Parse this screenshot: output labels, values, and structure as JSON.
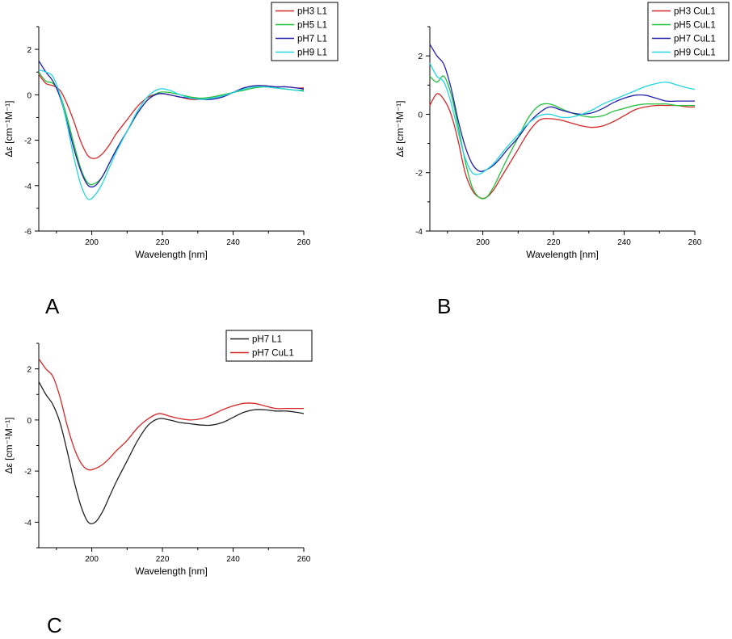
{
  "chart_data": [
    {
      "panel": "A",
      "type": "line",
      "xlabel": "Wavelength [nm]",
      "ylabel": "Δε [cm⁻¹M⁻¹]",
      "xlim": [
        185,
        260
      ],
      "ylim": [
        -6,
        3
      ],
      "xticks": [
        200,
        220,
        240,
        260
      ],
      "yticks": [
        -6,
        -4,
        -2,
        0,
        2
      ],
      "legend_position": "top-right",
      "series": [
        {
          "name": "pH3 L1",
          "color": "#d62728",
          "x": [
            185,
            187,
            189,
            191,
            193,
            195,
            197,
            199,
            201,
            203,
            205,
            207,
            210,
            213,
            216,
            219,
            222,
            225,
            228,
            231,
            234,
            237,
            240,
            243,
            246,
            249,
            252,
            255,
            258,
            260
          ],
          "y": [
            0.9,
            0.5,
            0.4,
            0.2,
            -0.4,
            -1.2,
            -2.1,
            -2.7,
            -2.8,
            -2.6,
            -2.2,
            -1.7,
            -1.1,
            -0.5,
            -0.1,
            0.05,
            0.0,
            -0.1,
            -0.2,
            -0.2,
            -0.15,
            -0.05,
            0.1,
            0.3,
            0.4,
            0.4,
            0.35,
            0.35,
            0.3,
            0.3
          ]
        },
        {
          "name": "pH5 L1",
          "color": "#1fbf3a",
          "x": [
            185,
            187,
            189,
            191,
            193,
            195,
            197,
            199,
            201,
            203,
            205,
            207,
            210,
            213,
            216,
            219,
            222,
            225,
            228,
            231,
            234,
            237,
            240,
            243,
            246,
            249,
            252,
            255,
            258,
            260
          ],
          "y": [
            1.0,
            0.6,
            0.5,
            0.0,
            -1.0,
            -2.2,
            -3.3,
            -3.9,
            -3.9,
            -3.6,
            -3.0,
            -2.4,
            -1.6,
            -0.8,
            -0.2,
            0.1,
            0.1,
            0.0,
            -0.1,
            -0.15,
            -0.1,
            0.0,
            0.1,
            0.2,
            0.3,
            0.35,
            0.3,
            0.25,
            0.2,
            0.2
          ]
        },
        {
          "name": "pH7 L1",
          "color": "#2222aa",
          "x": [
            185,
            187,
            189,
            191,
            193,
            195,
            197,
            199,
            201,
            203,
            205,
            207,
            210,
            213,
            216,
            219,
            222,
            225,
            228,
            231,
            234,
            237,
            240,
            243,
            246,
            249,
            252,
            255,
            258,
            260
          ],
          "y": [
            1.5,
            1.0,
            0.6,
            -0.1,
            -1.2,
            -2.4,
            -3.4,
            -4.0,
            -4.0,
            -3.6,
            -3.0,
            -2.4,
            -1.6,
            -0.8,
            -0.2,
            0.05,
            0.0,
            -0.1,
            -0.15,
            -0.2,
            -0.2,
            -0.1,
            0.1,
            0.3,
            0.4,
            0.4,
            0.35,
            0.35,
            0.3,
            0.25
          ]
        },
        {
          "name": "pH9 L1",
          "color": "#22d6e0",
          "x": [
            185,
            187,
            189,
            191,
            193,
            195,
            197,
            199,
            201,
            203,
            205,
            207,
            210,
            213,
            216,
            219,
            222,
            225,
            228,
            231,
            234,
            237,
            240,
            243,
            246,
            249,
            252,
            255,
            258,
            260
          ],
          "y": [
            1.1,
            1.0,
            0.8,
            0.0,
            -1.3,
            -2.8,
            -4.0,
            -4.6,
            -4.4,
            -3.9,
            -3.2,
            -2.5,
            -1.6,
            -0.7,
            -0.05,
            0.25,
            0.2,
            0.0,
            -0.15,
            -0.2,
            -0.15,
            -0.05,
            0.1,
            0.25,
            0.35,
            0.35,
            0.3,
            0.25,
            0.2,
            0.15
          ]
        }
      ]
    },
    {
      "panel": "B",
      "type": "line",
      "xlabel": "Wavelength [nm]",
      "ylabel": "Δε [cm⁻¹M⁻¹]",
      "xlim": [
        185,
        260
      ],
      "ylim": [
        -4,
        3
      ],
      "xticks": [
        200,
        220,
        240,
        260
      ],
      "yticks": [
        -4,
        -2,
        0,
        2
      ],
      "legend_position": "top-right",
      "series": [
        {
          "name": "pH3 CuL1",
          "color": "#d62728",
          "x": [
            185,
            187,
            189,
            191,
            193,
            195,
            197,
            199,
            201,
            203,
            205,
            207,
            210,
            213,
            216,
            219,
            222,
            225,
            228,
            231,
            234,
            237,
            240,
            243,
            246,
            249,
            252,
            255,
            258,
            260
          ],
          "y": [
            0.3,
            0.7,
            0.5,
            0.0,
            -0.9,
            -2.0,
            -2.6,
            -2.85,
            -2.85,
            -2.6,
            -2.2,
            -1.8,
            -1.2,
            -0.6,
            -0.2,
            -0.15,
            -0.2,
            -0.3,
            -0.4,
            -0.45,
            -0.4,
            -0.25,
            -0.05,
            0.15,
            0.25,
            0.3,
            0.3,
            0.3,
            0.25,
            0.25
          ]
        },
        {
          "name": "pH5 CuL1",
          "color": "#1fbf3a",
          "x": [
            185,
            187,
            189,
            191,
            193,
            195,
            197,
            199,
            201,
            203,
            205,
            207,
            210,
            213,
            216,
            219,
            222,
            225,
            228,
            231,
            234,
            237,
            240,
            243,
            246,
            249,
            252,
            255,
            258,
            260
          ],
          "y": [
            1.3,
            1.1,
            1.3,
            0.7,
            -0.4,
            -1.6,
            -2.5,
            -2.85,
            -2.85,
            -2.5,
            -2.0,
            -1.5,
            -0.8,
            -0.1,
            0.3,
            0.35,
            0.2,
            0.05,
            -0.05,
            -0.1,
            -0.05,
            0.1,
            0.2,
            0.3,
            0.35,
            0.35,
            0.35,
            0.3,
            0.3,
            0.3
          ]
        },
        {
          "name": "pH7 CuL1",
          "color": "#2222aa",
          "x": [
            185,
            187,
            189,
            191,
            193,
            195,
            197,
            199,
            201,
            203,
            205,
            207,
            210,
            213,
            216,
            219,
            222,
            225,
            228,
            231,
            234,
            237,
            240,
            243,
            246,
            249,
            252,
            255,
            258,
            260
          ],
          "y": [
            2.4,
            2.0,
            1.7,
            0.9,
            -0.2,
            -1.1,
            -1.7,
            -1.95,
            -1.9,
            -1.75,
            -1.5,
            -1.2,
            -0.8,
            -0.3,
            0.05,
            0.25,
            0.15,
            0.05,
            0.0,
            0.05,
            0.2,
            0.4,
            0.55,
            0.65,
            0.65,
            0.55,
            0.45,
            0.45,
            0.45,
            0.45
          ]
        },
        {
          "name": "pH9 CuL1",
          "color": "#22d6e0",
          "x": [
            185,
            187,
            189,
            191,
            193,
            195,
            197,
            199,
            201,
            203,
            205,
            207,
            210,
            213,
            216,
            219,
            222,
            225,
            228,
            231,
            234,
            237,
            240,
            243,
            246,
            249,
            252,
            255,
            258,
            260
          ],
          "y": [
            1.75,
            1.3,
            1.1,
            0.4,
            -0.6,
            -1.5,
            -2.0,
            -2.05,
            -1.9,
            -1.7,
            -1.4,
            -1.1,
            -0.7,
            -0.3,
            -0.05,
            0.0,
            -0.1,
            -0.1,
            0.0,
            0.15,
            0.35,
            0.5,
            0.65,
            0.8,
            0.95,
            1.05,
            1.1,
            1.0,
            0.9,
            0.85
          ]
        }
      ]
    },
    {
      "panel": "C",
      "type": "line",
      "xlabel": "Wavelength [nm]",
      "ylabel": "Δε [cm⁻¹M⁻¹]",
      "xlim": [
        185,
        260
      ],
      "ylim": [
        -5,
        3
      ],
      "xticks": [
        200,
        220,
        240,
        260
      ],
      "yticks": [
        -4,
        -2,
        0,
        2
      ],
      "legend_position": "top-right",
      "series": [
        {
          "name": "pH7 L1",
          "color": "#222222",
          "x": [
            185,
            187,
            189,
            191,
            193,
            195,
            197,
            199,
            201,
            203,
            205,
            207,
            210,
            213,
            216,
            219,
            222,
            225,
            228,
            231,
            234,
            237,
            240,
            243,
            246,
            249,
            252,
            255,
            258,
            260
          ],
          "y": [
            1.5,
            1.0,
            0.6,
            -0.1,
            -1.2,
            -2.4,
            -3.4,
            -4.0,
            -4.0,
            -3.6,
            -3.0,
            -2.4,
            -1.6,
            -0.8,
            -0.2,
            0.05,
            0.0,
            -0.1,
            -0.15,
            -0.2,
            -0.2,
            -0.1,
            0.1,
            0.3,
            0.4,
            0.4,
            0.35,
            0.35,
            0.3,
            0.25
          ]
        },
        {
          "name": "pH7 CuL1",
          "color": "#d62728",
          "x": [
            185,
            187,
            189,
            191,
            193,
            195,
            197,
            199,
            201,
            203,
            205,
            207,
            210,
            213,
            216,
            219,
            222,
            225,
            228,
            231,
            234,
            237,
            240,
            243,
            246,
            249,
            252,
            255,
            258,
            260
          ],
          "y": [
            2.4,
            2.0,
            1.7,
            0.9,
            -0.2,
            -1.1,
            -1.7,
            -1.95,
            -1.9,
            -1.75,
            -1.5,
            -1.2,
            -0.8,
            -0.3,
            0.05,
            0.25,
            0.15,
            0.05,
            0.0,
            0.05,
            0.2,
            0.4,
            0.55,
            0.65,
            0.65,
            0.55,
            0.45,
            0.45,
            0.45,
            0.45
          ]
        }
      ]
    }
  ]
}
